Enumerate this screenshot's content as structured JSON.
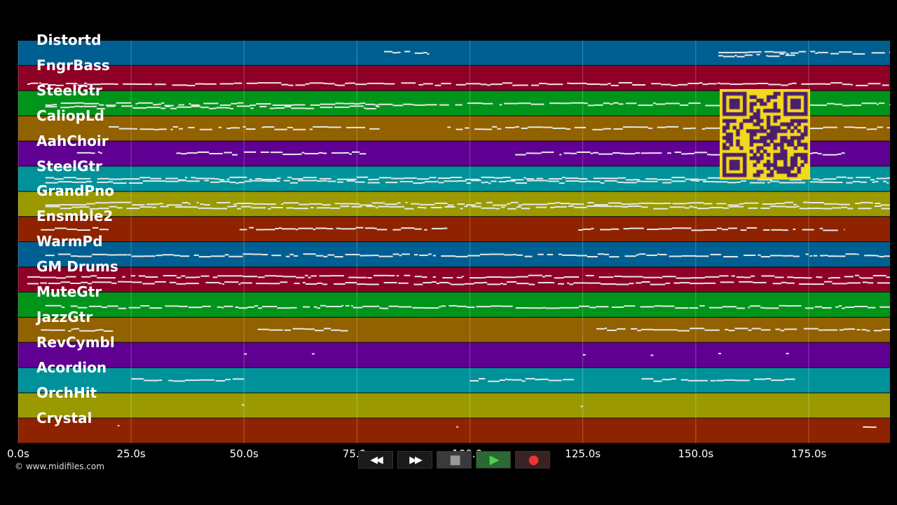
{
  "colors": {
    "band_palette": [
      "#005f92",
      "#8e0026",
      "#00951a",
      "#926100",
      "#5f0092",
      "#00929a",
      "#9a9a00",
      "#8f2300"
    ],
    "note": "#e8e8e8",
    "qr_fg": "#4a1e6e",
    "qr_bg": "#f4d81c"
  },
  "tracks": [
    {
      "label": "Distortd",
      "notes": [
        [
          81,
          91,
          0.45
        ],
        [
          155,
          193,
          0.45
        ],
        [
          155,
          172,
          0.55
        ]
      ]
    },
    {
      "label": "FngrBass",
      "notes": [
        [
          2,
          193,
          0.7
        ]
      ]
    },
    {
      "label": "SteelGtr",
      "notes": [
        [
          6,
          193,
          0.5
        ],
        [
          6,
          80,
          0.62
        ]
      ]
    },
    {
      "label": "CaliopLd",
      "notes": [
        [
          20,
          80,
          0.45
        ],
        [
          95,
          193,
          0.45
        ]
      ]
    },
    {
      "label": "AahChoir",
      "notes": [
        [
          13,
          19,
          0.45
        ],
        [
          35,
          77,
          0.45
        ],
        [
          110,
          183,
          0.45
        ]
      ]
    },
    {
      "label": "SteelGtr",
      "notes": [
        [
          6,
          193,
          0.45
        ],
        [
          6,
          193,
          0.58
        ]
      ]
    },
    {
      "label": "GrandPno",
      "notes": [
        [
          6,
          193,
          0.45
        ],
        [
          6,
          193,
          0.6
        ]
      ]
    },
    {
      "label": "Ensmble2",
      "notes": [
        [
          5,
          20,
          0.45
        ],
        [
          49,
          95,
          0.45
        ],
        [
          124,
          183,
          0.45
        ]
      ]
    },
    {
      "label": "WarmPd",
      "notes": [
        [
          6,
          193,
          0.5
        ]
      ]
    },
    {
      "label": "GM Drums",
      "notes": [
        [
          2,
          193,
          0.35
        ],
        [
          2,
          193,
          0.6
        ]
      ]
    },
    {
      "label": "MuteGtr",
      "notes": [
        [
          6,
          193,
          0.55
        ]
      ]
    },
    {
      "label": "JazzGtr",
      "notes": [
        [
          5,
          21,
          0.45
        ],
        [
          53,
          73,
          0.45
        ],
        [
          128,
          193,
          0.45
        ]
      ]
    },
    {
      "label": "RevCymbl",
      "notes": [
        [
          50,
          50.6,
          0.45
        ],
        [
          65,
          65.6,
          0.45
        ],
        [
          125,
          125.6,
          0.45
        ],
        [
          140,
          140.6,
          0.45
        ],
        [
          155,
          155.6,
          0.45
        ],
        [
          170,
          170.6,
          0.45
        ]
      ]
    },
    {
      "label": "Acordion",
      "notes": [
        [
          25,
          50,
          0.45
        ],
        [
          100,
          123,
          0.45
        ],
        [
          138,
          172,
          0.45
        ]
      ]
    },
    {
      "label": "OrchHit",
      "notes": [
        [
          49.5,
          50,
          0.45
        ],
        [
          124.5,
          125,
          0.45
        ]
      ]
    },
    {
      "label": "Crystal",
      "notes": [
        [
          22,
          22.4,
          0.3
        ],
        [
          97,
          97.4,
          0.3
        ],
        [
          187,
          190,
          0.3
        ]
      ]
    }
  ],
  "axis": {
    "ticks": [
      {
        "value": 0,
        "label": "0.0s"
      },
      {
        "value": 25,
        "label": "25.0s"
      },
      {
        "value": 50,
        "label": "50.0s"
      },
      {
        "value": 75,
        "label": "75.0s"
      },
      {
        "value": 100,
        "label": "100.0s"
      },
      {
        "value": 125,
        "label": "125.0s"
      },
      {
        "value": 150,
        "label": "150.0s"
      },
      {
        "value": 175,
        "label": "175.0s"
      }
    ],
    "range": [
      0,
      193
    ]
  },
  "copyright": "© www.midifiles.com",
  "transport": {
    "rewind": "◀◀",
    "fastforward": "▶▶",
    "stop": "■",
    "play": "▶",
    "record": "●"
  }
}
